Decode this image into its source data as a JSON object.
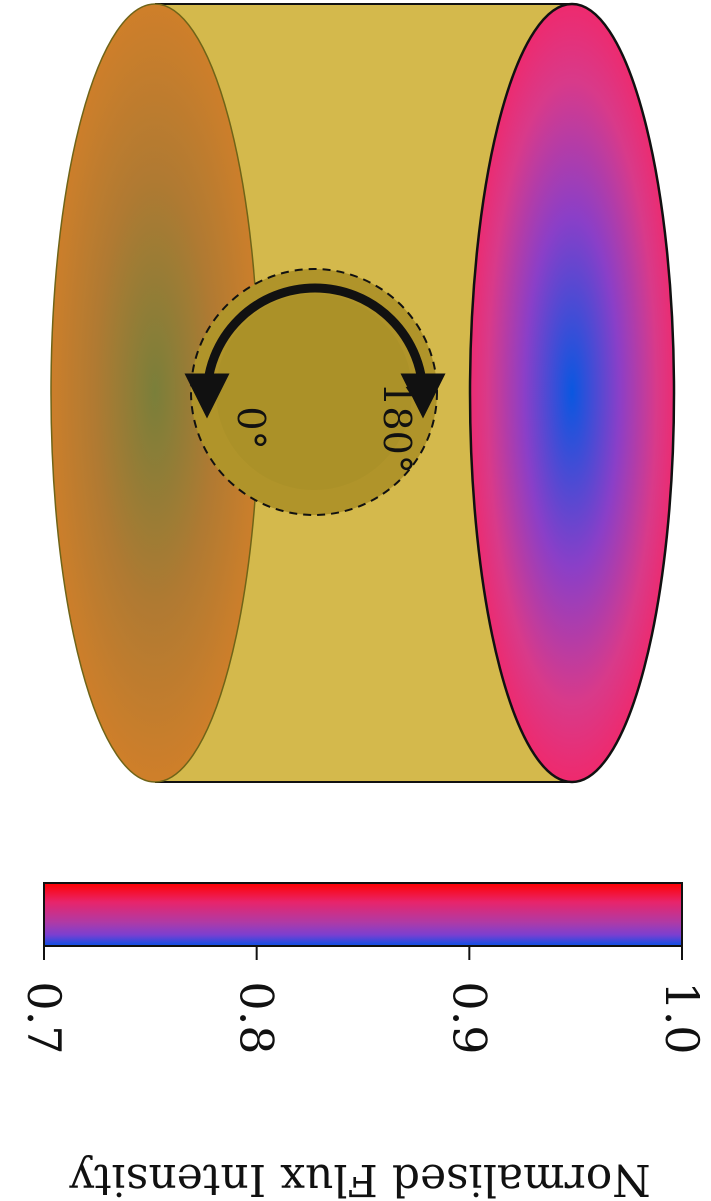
{
  "diagram": {
    "rotation_labels": {
      "start": "0°",
      "end": "180°"
    },
    "colorbar": {
      "ticks": [
        "0.7",
        "0.8",
        "0.9",
        "1.0"
      ],
      "tick_values": [
        0.7,
        0.8,
        0.9,
        1.0
      ],
      "range": [
        0.7,
        1.0
      ],
      "label": "Normalised Flux Intensity",
      "colors": {
        "low": "#0a50e6",
        "mid_low": "#7c3fd0",
        "mid": "#b03aa5",
        "mid_high": "#e8246a",
        "high": "#ff0000"
      }
    },
    "colors": {
      "cylinder_body": "#d4b94c",
      "cylinder_outline": "#111111",
      "left_face_edge": "#cf7f2a",
      "left_face_center": "#7a7f3a",
      "right_face_edge": "#ee2a6e",
      "right_face_center": "#0a57e0",
      "hole": "#b0942a",
      "arrow": "#111111"
    }
  }
}
